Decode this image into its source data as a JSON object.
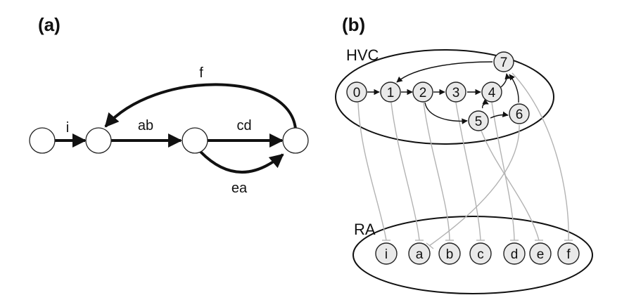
{
  "panel_a": {
    "label": "(a)",
    "edges": {
      "i": "i",
      "ab": "ab",
      "cd": "cd",
      "ea": "ea",
      "f": "f"
    }
  },
  "panel_b": {
    "label": "(b)",
    "hvc_label": "HVC",
    "ra_label": "RA",
    "hvc_nodes": [
      "0",
      "1",
      "2",
      "3",
      "4",
      "5",
      "6",
      "7"
    ],
    "ra_nodes": [
      "i",
      "a",
      "b",
      "c",
      "d",
      "e",
      "f"
    ]
  },
  "colors": {
    "line": "#111111",
    "projection": "#b3b3b3",
    "neuron_fill": "#e9e9e9"
  }
}
